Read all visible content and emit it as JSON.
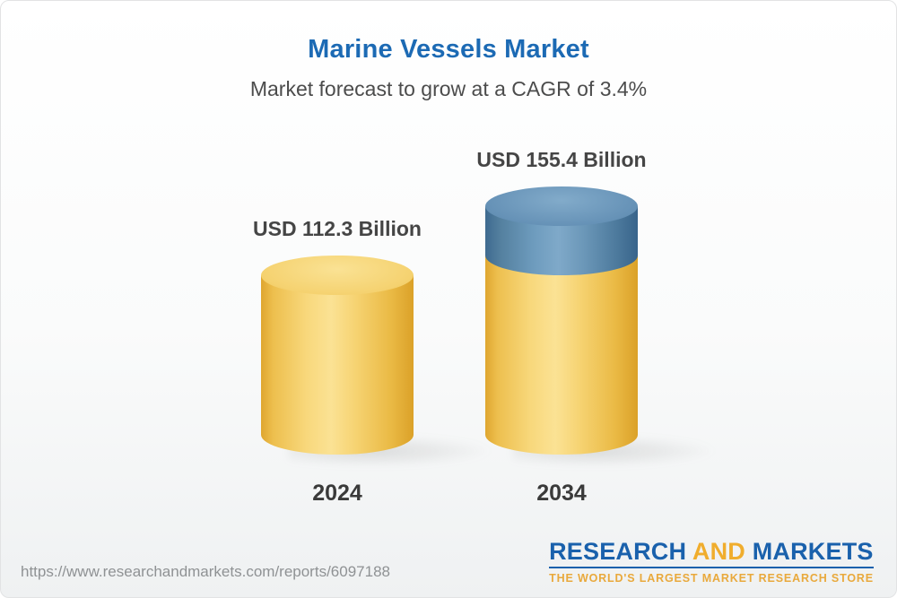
{
  "header": {
    "title": "Marine Vessels Market",
    "subtitle": "Market forecast to grow at a CAGR of 3.4%"
  },
  "chart_data": {
    "type": "bar",
    "subtype": "3d-cylinder",
    "title": "Marine Vessels Market",
    "annotation": "Market forecast to grow at a CAGR of 3.4%",
    "cagr_percent": 3.4,
    "unit": "USD Billion",
    "categories": [
      "2024",
      "2034"
    ],
    "values": [
      112.3,
      155.4
    ],
    "axes": "none",
    "legend": "none",
    "colors": {
      "gold": "#f5cd68",
      "blue": "#5b88ad"
    },
    "bars": [
      {
        "category": "2024",
        "value": 112.3,
        "value_label": "USD 112.3 Billion",
        "segments": [
          {
            "name": "base",
            "value": 112.3,
            "color": "#f5cd68"
          }
        ]
      },
      {
        "category": "2034",
        "value": 155.4,
        "value_label": "USD 155.4 Billion",
        "segments": [
          {
            "name": "base",
            "value": 112.3,
            "color": "#f5cd68"
          },
          {
            "name": "growth",
            "value": 43.1,
            "color": "#5b88ad"
          }
        ]
      }
    ]
  },
  "footer": {
    "url": "https://www.researchandmarkets.com/reports/6097188",
    "logo": {
      "word1": "RESEARCH",
      "word2": "AND",
      "word3": "MARKETS",
      "tagline": "THE WORLD'S LARGEST MARKET RESEARCH STORE"
    }
  }
}
